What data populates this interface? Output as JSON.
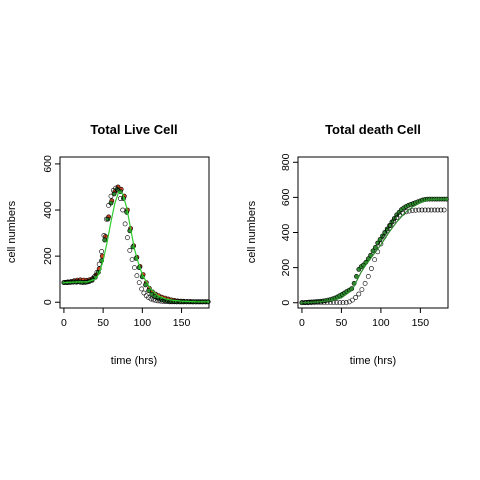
{
  "chart_data": [
    {
      "type": "scatter",
      "title": "Total Live Cell",
      "xlabel": "time (hrs)",
      "ylabel": "cell numbers",
      "xlim": [
        -5,
        185
      ],
      "ylim": [
        -25,
        630
      ],
      "xticks": [
        0,
        50,
        100,
        150
      ],
      "yticks": [
        0,
        200,
        400,
        600
      ],
      "grid": false,
      "legend": "none",
      "colors": {
        "fit_line": "#2ecc2e",
        "points_a": "#000000",
        "points_b": "#2e8b2e",
        "points_c": "#d2461e"
      },
      "series": [
        {
          "style": "open-black-circles",
          "x": [
            0,
            3,
            6,
            9,
            12,
            15,
            18,
            21,
            24,
            27,
            30,
            33,
            36,
            39,
            42,
            45,
            48,
            51,
            54,
            57,
            60,
            63,
            66,
            69,
            72,
            75,
            78,
            81,
            84,
            87,
            90,
            93,
            96,
            99,
            102,
            105,
            108,
            111,
            114,
            117,
            120,
            123,
            126,
            129,
            132,
            135,
            138,
            141,
            144,
            147,
            150,
            153,
            156,
            159,
            162,
            165,
            168,
            171,
            174,
            177,
            180,
            183
          ],
          "y": [
            85,
            86,
            86,
            87,
            88,
            88,
            89,
            87,
            86,
            86,
            88,
            92,
            100,
            112,
            130,
            165,
            220,
            290,
            360,
            420,
            460,
            485,
            495,
            485,
            450,
            400,
            340,
            280,
            225,
            185,
            150,
            115,
            85,
            58,
            40,
            28,
            20,
            14,
            10,
            8,
            6,
            5,
            4,
            3,
            3,
            2,
            2,
            2,
            2,
            2,
            2,
            2,
            2,
            2,
            2,
            2,
            2,
            2,
            2,
            2,
            2,
            2
          ]
        },
        {
          "style": "green-filled-circles",
          "x": [
            0,
            4,
            8,
            12,
            16,
            20,
            24,
            28,
            32,
            36,
            40,
            44,
            48,
            52,
            56,
            60,
            64,
            68,
            72,
            76,
            80,
            84,
            88,
            92,
            96,
            100,
            104,
            108,
            112,
            116,
            120,
            124,
            128,
            132,
            136,
            140,
            144,
            148,
            152,
            156,
            160,
            164,
            168,
            172,
            176,
            180,
            184
          ],
          "y": [
            85,
            85,
            86,
            87,
            87,
            88,
            86,
            87,
            90,
            95,
            108,
            130,
            180,
            270,
            360,
            430,
            470,
            490,
            480,
            450,
            390,
            310,
            240,
            190,
            150,
            110,
            75,
            50,
            35,
            25,
            18,
            12,
            9,
            6,
            4,
            3,
            2,
            2,
            2,
            2,
            2,
            2,
            2,
            2,
            2,
            2,
            2
          ]
        },
        {
          "style": "orange-filled-circles",
          "x": [
            1,
            5,
            9,
            13,
            17,
            21,
            25,
            29,
            33,
            37,
            41,
            45,
            49,
            53,
            57,
            61,
            65,
            69,
            73,
            77,
            81,
            85,
            89,
            93,
            97,
            101,
            105,
            109,
            113,
            117,
            121,
            125,
            129,
            133,
            137,
            141,
            145,
            149,
            153,
            157,
            161,
            165,
            169,
            173,
            177,
            181
          ],
          "y": [
            86,
            88,
            90,
            93,
            96,
            97,
            96,
            95,
            98,
            104,
            118,
            145,
            200,
            285,
            370,
            440,
            480,
            500,
            490,
            460,
            400,
            320,
            245,
            195,
            155,
            120,
            85,
            60,
            45,
            35,
            28,
            22,
            18,
            14,
            10,
            8,
            6,
            5,
            4,
            3,
            3,
            2,
            2,
            2,
            2,
            2
          ]
        },
        {
          "style": "green-line",
          "x": [
            0,
            10,
            20,
            30,
            40,
            45,
            50,
            55,
            60,
            65,
            70,
            75,
            80,
            85,
            90,
            95,
            100,
            110,
            120,
            130,
            140,
            150,
            160,
            170,
            180,
            185
          ],
          "y": [
            85,
            87,
            88,
            88,
            100,
            125,
            180,
            260,
            350,
            430,
            480,
            470,
            410,
            320,
            230,
            170,
            120,
            60,
            28,
            14,
            8,
            5,
            3,
            2,
            2,
            2
          ]
        }
      ]
    },
    {
      "type": "scatter",
      "title": "Total death Cell",
      "xlabel": "time (hrs)",
      "ylabel": "cell numbers",
      "xlim": [
        -5,
        185
      ],
      "ylim": [
        -30,
        830
      ],
      "xticks": [
        0,
        50,
        100,
        150
      ],
      "yticks": [
        0,
        200,
        400,
        600,
        800
      ],
      "grid": false,
      "legend": "none",
      "colors": {
        "fit_line": "#2e8b2e",
        "points_a": "#000000",
        "points_b": "#2e8b2e"
      },
      "series": [
        {
          "style": "open-black-circles",
          "x": [
            0,
            4,
            8,
            12,
            16,
            20,
            24,
            28,
            32,
            36,
            40,
            44,
            48,
            52,
            56,
            60,
            64,
            68,
            72,
            76,
            80,
            84,
            88,
            92,
            96,
            100,
            104,
            108,
            112,
            116,
            120,
            124,
            128,
            132,
            136,
            140,
            144,
            148,
            152,
            156,
            160,
            164,
            168,
            172,
            176,
            180
          ],
          "y": [
            0,
            0,
            0,
            0,
            0,
            0,
            0,
            0,
            0,
            0,
            0,
            0,
            0,
            0,
            0,
            5,
            15,
            30,
            50,
            75,
            110,
            150,
            195,
            245,
            290,
            335,
            375,
            410,
            440,
            465,
            485,
            500,
            510,
            518,
            522,
            525,
            527,
            528,
            528,
            528,
            528,
            528,
            528,
            528,
            528,
            528
          ]
        },
        {
          "style": "green-filled-circles",
          "x": [
            0,
            3,
            6,
            9,
            12,
            15,
            18,
            21,
            24,
            27,
            30,
            33,
            36,
            39,
            42,
            45,
            48,
            51,
            54,
            57,
            60,
            63,
            66,
            69,
            72,
            75,
            78,
            81,
            84,
            87,
            90,
            93,
            96,
            99,
            102,
            105,
            108,
            111,
            114,
            117,
            120,
            123,
            126,
            129,
            132,
            135,
            138,
            141,
            144,
            147,
            150,
            153,
            156,
            159,
            162,
            165,
            168,
            171,
            174,
            177,
            180,
            183
          ],
          "y": [
            0,
            1,
            2,
            3,
            4,
            5,
            6,
            7,
            8,
            10,
            12,
            15,
            18,
            22,
            27,
            33,
            40,
            48,
            56,
            64,
            72,
            80,
            110,
            150,
            190,
            205,
            215,
            230,
            250,
            270,
            295,
            315,
            340,
            360,
            380,
            400,
            420,
            440,
            460,
            480,
            500,
            515,
            530,
            540,
            548,
            555,
            560,
            565,
            570,
            575,
            580,
            585,
            588,
            590,
            590,
            590,
            590,
            590,
            590,
            590,
            590,
            590
          ]
        },
        {
          "style": "dark-green-line",
          "x": [
            0,
            20,
            40,
            50,
            60,
            65,
            70,
            75,
            80,
            90,
            100,
            110,
            120,
            130,
            140,
            150,
            160,
            170,
            180,
            185
          ],
          "y": [
            0,
            4,
            14,
            28,
            60,
            85,
            130,
            175,
            210,
            270,
            330,
            400,
            460,
            510,
            545,
            570,
            585,
            590,
            590,
            590
          ]
        }
      ]
    }
  ]
}
